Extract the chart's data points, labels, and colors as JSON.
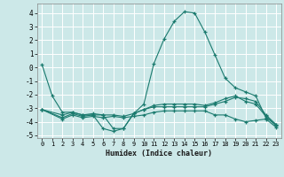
{
  "xlabel": "Humidex (Indice chaleur)",
  "bg_color": "#cce8e8",
  "grid_color": "#ffffff",
  "line_color": "#1a7a6e",
  "xlim": [
    -0.5,
    23.5
  ],
  "ylim": [
    -5.2,
    4.7
  ],
  "yticks": [
    -5,
    -4,
    -3,
    -2,
    -1,
    0,
    1,
    2,
    3,
    4
  ],
  "xticks": [
    0,
    1,
    2,
    3,
    4,
    5,
    6,
    7,
    8,
    9,
    10,
    11,
    12,
    13,
    14,
    15,
    16,
    17,
    18,
    19,
    20,
    21,
    22,
    23
  ],
  "series": [
    {
      "x": [
        0,
        1,
        2,
        3,
        4,
        5,
        6,
        7,
        8,
        9,
        10,
        11,
        12,
        13,
        14,
        15,
        16,
        17,
        18,
        19,
        20,
        21,
        22,
        23
      ],
      "y": [
        0.2,
        -2.1,
        -3.3,
        -3.3,
        -3.5,
        -3.5,
        -4.5,
        -4.7,
        -4.5,
        -3.4,
        -2.7,
        0.3,
        2.1,
        3.4,
        4.1,
        4.0,
        2.6,
        0.9,
        -0.8,
        -1.5,
        -1.8,
        -2.1,
        -3.7,
        -4.2
      ]
    },
    {
      "x": [
        0,
        2,
        3,
        4,
        5,
        6,
        7,
        8,
        9,
        10,
        11,
        12,
        13,
        14,
        15,
        16,
        17,
        18,
        19,
        20,
        21,
        22,
        23
      ],
      "y": [
        -3.1,
        -3.5,
        -3.3,
        -3.5,
        -3.4,
        -3.5,
        -4.5,
        -4.5,
        -3.4,
        -3.1,
        -2.9,
        -2.9,
        -2.9,
        -2.9,
        -2.9,
        -2.9,
        -2.7,
        -2.5,
        -2.2,
        -2.3,
        -2.5,
        -3.5,
        -4.2
      ]
    },
    {
      "x": [
        0,
        2,
        3,
        4,
        5,
        6,
        7,
        8,
        9,
        10,
        11,
        12,
        13,
        14,
        15,
        16,
        17,
        18,
        19,
        20,
        21,
        22,
        23
      ],
      "y": [
        -3.1,
        -3.7,
        -3.4,
        -3.6,
        -3.5,
        -3.5,
        -3.5,
        -3.6,
        -3.4,
        -3.1,
        -2.8,
        -2.7,
        -2.7,
        -2.7,
        -2.7,
        -2.8,
        -2.6,
        -2.3,
        -2.1,
        -2.5,
        -2.7,
        -3.6,
        -4.3
      ]
    },
    {
      "x": [
        0,
        2,
        3,
        4,
        5,
        6,
        7,
        8,
        9,
        10,
        11,
        12,
        13,
        14,
        15,
        16,
        17,
        18,
        19,
        20,
        21,
        22,
        23
      ],
      "y": [
        -3.1,
        -3.8,
        -3.5,
        -3.7,
        -3.6,
        -3.7,
        -3.6,
        -3.7,
        -3.6,
        -3.5,
        -3.3,
        -3.2,
        -3.2,
        -3.2,
        -3.2,
        -3.2,
        -3.5,
        -3.5,
        -3.8,
        -4.0,
        -3.9,
        -3.8,
        -4.4
      ]
    }
  ]
}
